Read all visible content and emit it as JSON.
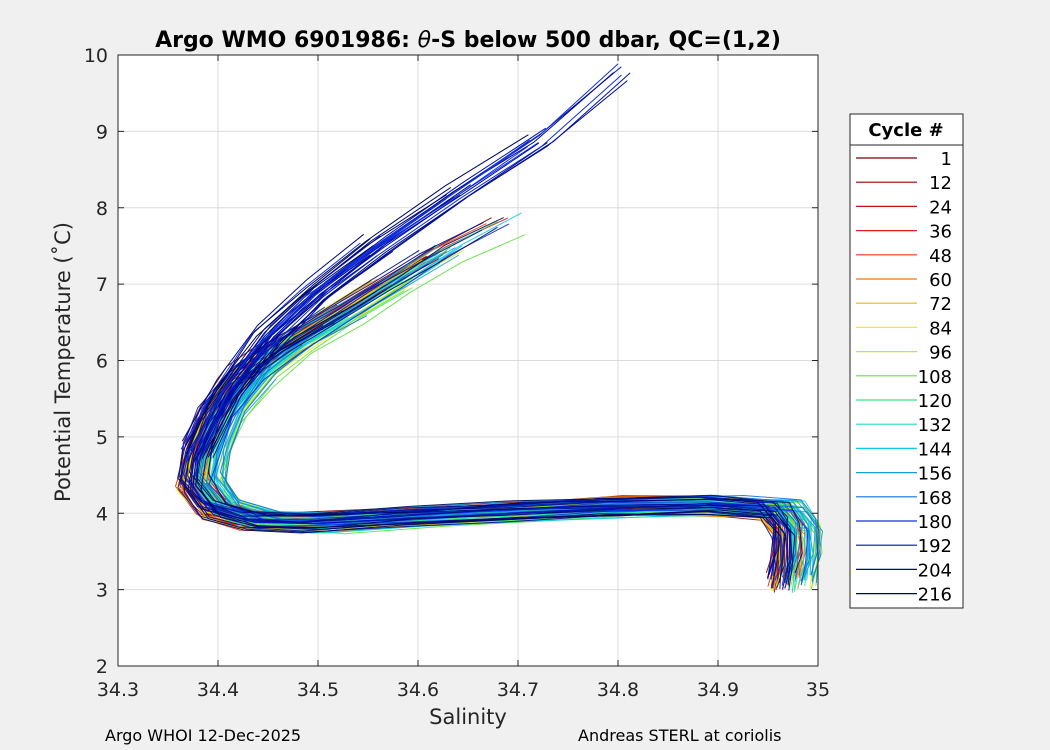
{
  "chart_data": {
    "type": "line",
    "title_prefix": "Argo WMO 6901986: ",
    "title_theta": "θ",
    "title_suffix": "-S below 500 dbar,  QC=(1,2)",
    "xlabel": "Salinity",
    "ylabel": "Potential Temperature (˚C)",
    "xlim": [
      34.3,
      35.0
    ],
    "ylim": [
      2,
      10
    ],
    "xticks": [
      "34.3",
      "34.4",
      "34.5",
      "34.6",
      "34.7",
      "34.8",
      "34.9",
      "35"
    ],
    "yticks": [
      "2",
      "3",
      "4",
      "5",
      "6",
      "7",
      "8",
      "9",
      "10"
    ],
    "grid": true,
    "legend": {
      "title": "Cycle #",
      "placement": "right",
      "entries": [
        {
          "label": "1",
          "color": "#7a0000"
        },
        {
          "label": "12",
          "color": "#a00000"
        },
        {
          "label": "24",
          "color": "#c81010"
        },
        {
          "label": "36",
          "color": "#e02020"
        },
        {
          "label": "48",
          "color": "#ee3a10"
        },
        {
          "label": "60",
          "color": "#f07810"
        },
        {
          "label": "72",
          "color": "#e8b800"
        },
        {
          "label": "84",
          "color": "#f0f000"
        },
        {
          "label": "96",
          "color": "#b8ee20"
        },
        {
          "label": "108",
          "color": "#60e040"
        },
        {
          "label": "120",
          "color": "#30e880"
        },
        {
          "label": "132",
          "color": "#20e0c0"
        },
        {
          "label": "144",
          "color": "#10c8e8"
        },
        {
          "label": "156",
          "color": "#10a0d8"
        },
        {
          "label": "168",
          "color": "#1070e0"
        },
        {
          "label": "180",
          "color": "#1030e0"
        },
        {
          "label": "192",
          "color": "#0010b0"
        },
        {
          "label": "204",
          "color": "#000a88"
        },
        {
          "label": "216",
          "color": "#000860"
        }
      ]
    },
    "series_profile": {
      "description_curve_S_theta": [
        [
          34.97,
          3.1
        ],
        [
          34.975,
          3.4
        ],
        [
          34.975,
          3.8
        ],
        [
          34.96,
          4.05
        ],
        [
          34.9,
          4.1
        ],
        [
          34.8,
          4.08
        ],
        [
          34.7,
          4.02
        ],
        [
          34.6,
          3.95
        ],
        [
          34.5,
          3.88
        ],
        [
          34.44,
          3.9
        ],
        [
          34.4,
          4.05
        ],
        [
          34.38,
          4.4
        ],
        [
          34.385,
          4.8
        ],
        [
          34.4,
          5.3
        ],
        [
          34.43,
          5.8
        ],
        [
          34.47,
          6.2
        ],
        [
          34.52,
          6.6
        ],
        [
          34.57,
          7.0
        ],
        [
          34.62,
          7.4
        ],
        [
          34.68,
          7.8
        ]
      ],
      "upper_branch_S_theta": [
        [
          34.38,
          4.8
        ],
        [
          34.41,
          5.6
        ],
        [
          34.45,
          6.3
        ],
        [
          34.5,
          6.9
        ],
        [
          34.56,
          7.5
        ],
        [
          34.64,
          8.2
        ],
        [
          34.72,
          8.9
        ],
        [
          34.8,
          9.8
        ]
      ]
    }
  },
  "footer": {
    "left": "Argo WHOI 12-Dec-2025",
    "right": "Andreas STERL at coriolis"
  }
}
